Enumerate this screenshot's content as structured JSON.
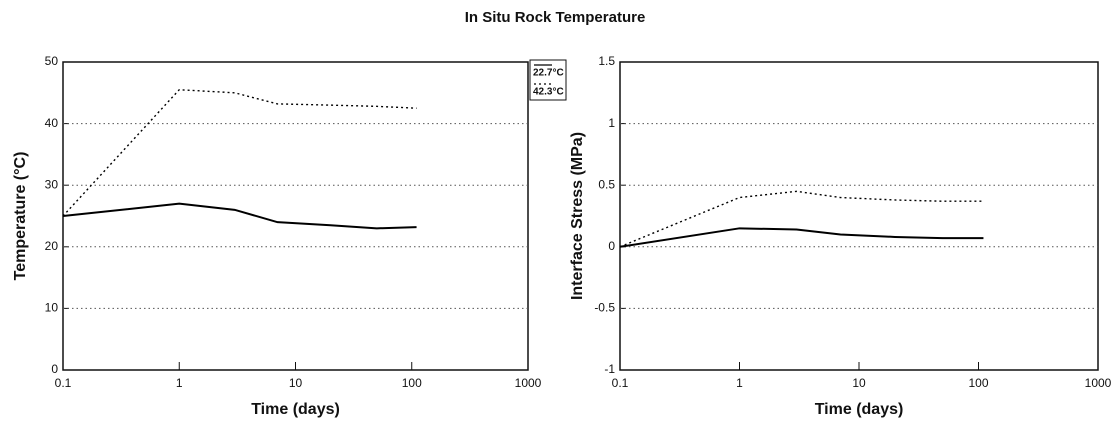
{
  "title": "In Situ Rock Temperature",
  "chart_data": [
    {
      "type": "line",
      "xlabel": "Time (days)",
      "ylabel": "Temperature (°C)",
      "xscale": "log",
      "xlim": [
        0.1,
        1000
      ],
      "xticks": [
        0.1,
        1,
        10,
        100,
        1000
      ],
      "ylim": [
        0,
        50
      ],
      "yticks": [
        0,
        10,
        20,
        30,
        40,
        50
      ],
      "grid": true,
      "legend": "outside-right",
      "x": [
        0.1,
        1,
        3,
        7,
        20,
        50,
        110
      ],
      "series": [
        {
          "name": "22.7°C",
          "color": "#000000",
          "style": "solid",
          "values": [
            25,
            27,
            26,
            24,
            23.5,
            23,
            23.2
          ]
        },
        {
          "name": "42.3°C",
          "color": "#000000",
          "style": "dotted",
          "values": [
            25,
            45.5,
            45,
            43.2,
            43,
            42.8,
            42.5
          ]
        }
      ]
    },
    {
      "type": "line",
      "xlabel": "Time (days)",
      "ylabel": "Interface Stress (MPa)",
      "xscale": "log",
      "xlim": [
        0.1,
        1000
      ],
      "xticks": [
        0.1,
        1,
        10,
        100,
        1000
      ],
      "ylim": [
        -1,
        1.5
      ],
      "yticks": [
        -1,
        -0.5,
        0,
        0.5,
        1,
        1.5
      ],
      "grid": true,
      "x": [
        0.1,
        1,
        3,
        7,
        20,
        50,
        110
      ],
      "series": [
        {
          "color": "#000000",
          "style": "solid",
          "values": [
            0,
            0.15,
            0.14,
            0.1,
            0.08,
            0.07,
            0.07
          ]
        },
        {
          "color": "#000000",
          "style": "dotted",
          "values": [
            0,
            0.4,
            0.45,
            0.4,
            0.38,
            0.37,
            0.37
          ]
        }
      ]
    }
  ]
}
